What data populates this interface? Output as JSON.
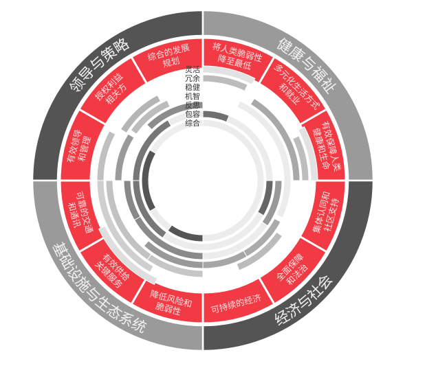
{
  "colors": {
    "dark_quadrant": "#545454",
    "light_quadrant": "#9a9a9a",
    "segment_red": "#f23a45",
    "segment_text": "#fde0e0"
  },
  "quadrants": [
    {
      "label": "领导与策略",
      "shade": "dark"
    },
    {
      "label": "健康与福祉",
      "shade": "light"
    },
    {
      "label": "经济与社会",
      "shade": "dark"
    },
    {
      "label": "基础设施与生态系统",
      "shade": "light"
    }
  ],
  "segments": [
    {
      "lines": [
        "将人类脆弱性",
        "降至最低"
      ]
    },
    {
      "lines": [
        "多元化生活方式",
        "和就业"
      ]
    },
    {
      "lines": [
        "有效保障人类",
        "健康和生命"
      ]
    },
    {
      "lines": [
        "集体认同和",
        "社区支持"
      ]
    },
    {
      "lines": [
        "全面保障",
        "和法治"
      ]
    },
    {
      "lines": [
        "可持续的经济"
      ]
    },
    {
      "lines": [
        "降低风险和",
        "脆弱性"
      ]
    },
    {
      "lines": [
        "有效供给",
        "关键服务"
      ]
    },
    {
      "lines": [
        "可靠的交通",
        "和通讯"
      ]
    },
    {
      "lines": [
        "有效领导",
        "和管理"
      ]
    },
    {
      "lines": [
        "授权利益",
        "相关方"
      ]
    },
    {
      "lines": [
        "综合的发展",
        "规划"
      ]
    }
  ],
  "qualities": [
    "灵活",
    "冗余",
    "稳健",
    "机智",
    "反思",
    "包容",
    "综合"
  ]
}
